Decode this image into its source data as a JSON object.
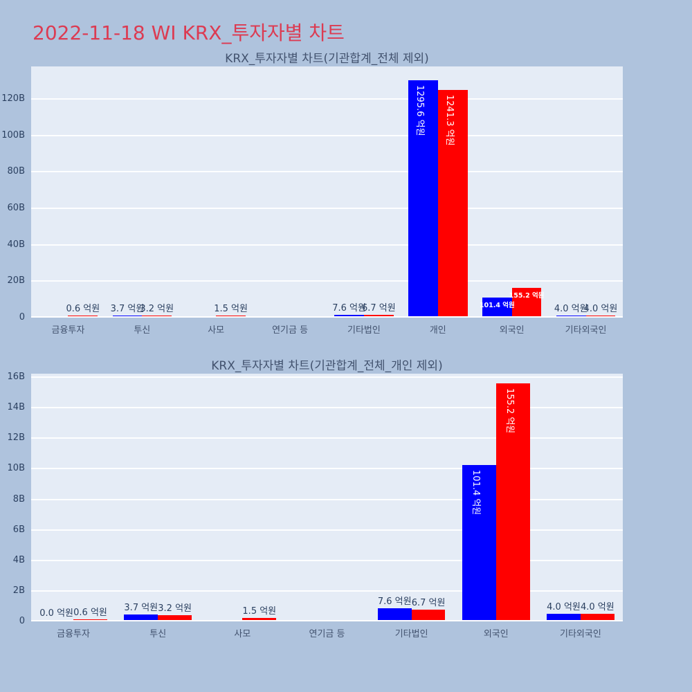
{
  "page_title": "2022-11-18 WI KRX_투자자별 차트",
  "colors": {
    "background": "#AFC3DD",
    "plot_background": "#E5ECF6",
    "gridline": "#FFFFFF",
    "text": "#2A3F5F",
    "page_title": "#DC3B52",
    "bar_blue": "#0000FF",
    "bar_red": "#FF0000",
    "inside_label": "#FFFFFF"
  },
  "chart_data": [
    {
      "type": "bar",
      "title": "KRX_투자자별 차트(기관합계_전체 제외)",
      "value_unit": "억원",
      "categories": [
        "금융투자",
        "투신",
        "사모",
        "연기금 등",
        "기타법인",
        "개인",
        "외국인",
        "기타외국인"
      ],
      "series": [
        {
          "name": "blue",
          "color": "#0000FF",
          "values": [
            null,
            3.7,
            null,
            null,
            7.6,
            1295.6,
            101.4,
            4.0
          ],
          "labels": [
            null,
            "3.7 억원",
            null,
            null,
            "7.6 억원",
            "1295.6 억원",
            "101.4 억원",
            "4.0 억원"
          ]
        },
        {
          "name": "red",
          "color": "#FF0000",
          "values": [
            0.6,
            3.2,
            1.5,
            null,
            6.7,
            1241.3,
            155.2,
            4.0
          ],
          "labels": [
            "0.6 억원",
            "3.2 억원",
            "1.5 억원",
            null,
            "6.7 억원",
            "1241.3 억원",
            "155.2 억원",
            "4.0 억원"
          ]
        }
      ],
      "yticks": {
        "labels": [
          "0",
          "20B",
          "40B",
          "60B",
          "80B",
          "100B",
          "120B"
        ],
        "values_B": [
          0,
          20,
          40,
          60,
          80,
          100,
          120
        ]
      },
      "ylim_B": [
        0,
        137.9
      ],
      "value_to_B": 0.1,
      "grid": true,
      "legend": false
    },
    {
      "type": "bar",
      "title": "KRX_투자자별 차트(기관합계_전체_개인 제외)",
      "value_unit": "억원",
      "categories": [
        "금융투자",
        "투신",
        "사모",
        "연기금 등",
        "기타법인",
        "외국인",
        "기타외국인"
      ],
      "series": [
        {
          "name": "blue",
          "color": "#0000FF",
          "values": [
            0.0,
            3.7,
            null,
            null,
            7.6,
            101.4,
            4.0
          ],
          "labels": [
            "0.0 억원",
            "3.7 억원",
            null,
            null,
            "7.6 억원",
            "101.4 억원",
            "4.0 억원"
          ]
        },
        {
          "name": "red",
          "color": "#FF0000",
          "values": [
            0.6,
            3.2,
            1.5,
            null,
            6.7,
            155.2,
            4.0
          ],
          "labels": [
            "0.6 억원",
            "3.2 억원",
            "1.5 억원",
            null,
            "6.7 억원",
            "155.2 억원",
            "4.0 억원"
          ]
        }
      ],
      "yticks": {
        "labels": [
          "0",
          "2B",
          "4B",
          "6B",
          "8B",
          "10B",
          "12B",
          "14B",
          "16B"
        ],
        "values_B": [
          0,
          2,
          4,
          6,
          8,
          10,
          12,
          14,
          16
        ]
      },
      "ylim_B": [
        0,
        16.23
      ],
      "value_to_B": 0.1,
      "grid": true,
      "legend": false
    }
  ]
}
